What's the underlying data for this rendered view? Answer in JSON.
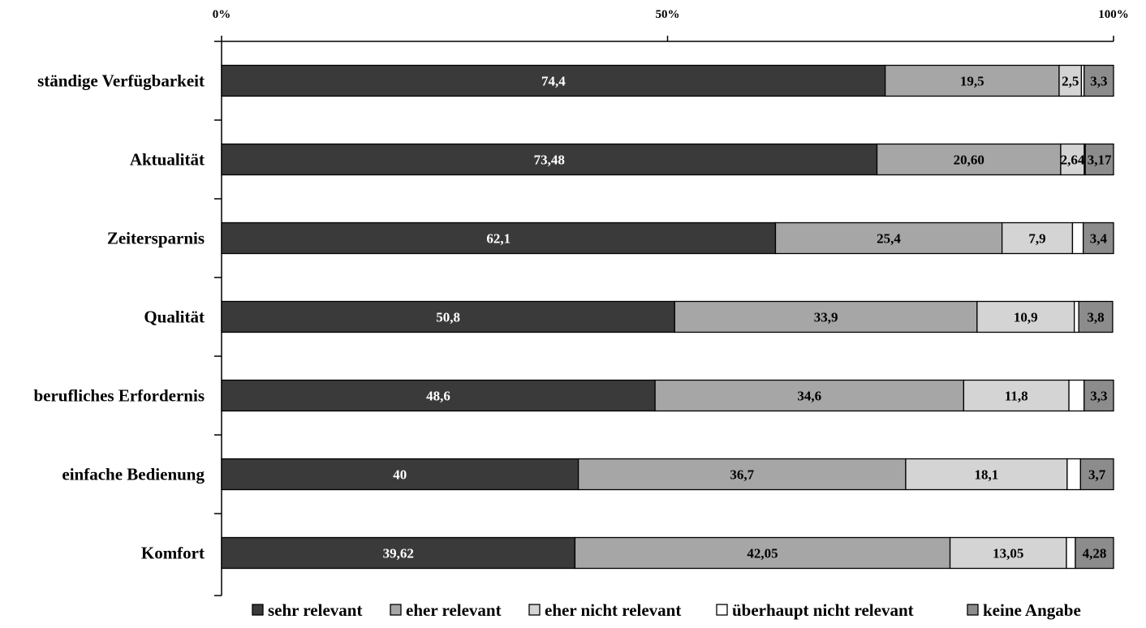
{
  "chart_data": {
    "type": "bar",
    "orientation": "horizontal",
    "stacked": true,
    "xlim": [
      0,
      100
    ],
    "x_ticks": [
      "0%",
      "50%",
      "100%"
    ],
    "x_tick_values": [
      0,
      50,
      100
    ],
    "legend_position": "bottom",
    "grid": false,
    "categories": [
      "ständige Verfügbarkeit",
      "Aktualität",
      "Zeitersparnis",
      "Qualität",
      "berufliches Erfordernis",
      "einfache Bedienung",
      "Komfort"
    ],
    "series": [
      {
        "name": "sehr relevant",
        "color": "#3a3a3a",
        "text_color": "#ffffff",
        "values": [
          74.4,
          73.48,
          62.1,
          50.8,
          48.6,
          40,
          39.62
        ],
        "labels": [
          "74,4",
          "73,48",
          "62,1",
          "50,8",
          "48,6",
          "40",
          "39,62"
        ]
      },
      {
        "name": "eher relevant",
        "color": "#a6a6a6",
        "text_color": "#000000",
        "values": [
          19.5,
          20.6,
          25.4,
          33.9,
          34.6,
          36.7,
          42.05
        ],
        "labels": [
          "19,5",
          "20,60",
          "25,4",
          "33,9",
          "34,6",
          "36,7",
          "42,05"
        ]
      },
      {
        "name": "eher nicht relevant",
        "color": "#d4d4d4",
        "text_color": "#000000",
        "values": [
          2.5,
          2.64,
          7.9,
          10.9,
          11.8,
          18.1,
          13.05
        ],
        "labels": [
          "2,5",
          "2,64",
          "7,9",
          "10,9",
          "11,8",
          "18,1",
          "13,05"
        ]
      },
      {
        "name": "überhaupt nicht relevant",
        "color": "#ffffff",
        "text_color": "#000000",
        "values": [
          0.3,
          0.11,
          1.2,
          0.5,
          1.7,
          1.5,
          1.0
        ],
        "labels": [
          "",
          "",
          "",
          "",
          "",
          "",
          ""
        ]
      },
      {
        "name": "keine Angabe",
        "color": "#8c8c8c",
        "text_color": "#000000",
        "values": [
          3.3,
          3.17,
          3.4,
          3.8,
          3.3,
          3.7,
          4.28
        ],
        "labels": [
          "3,3",
          "3,17",
          "3,4",
          "3,8",
          "3,3",
          "3,7",
          "4,28"
        ]
      }
    ]
  }
}
